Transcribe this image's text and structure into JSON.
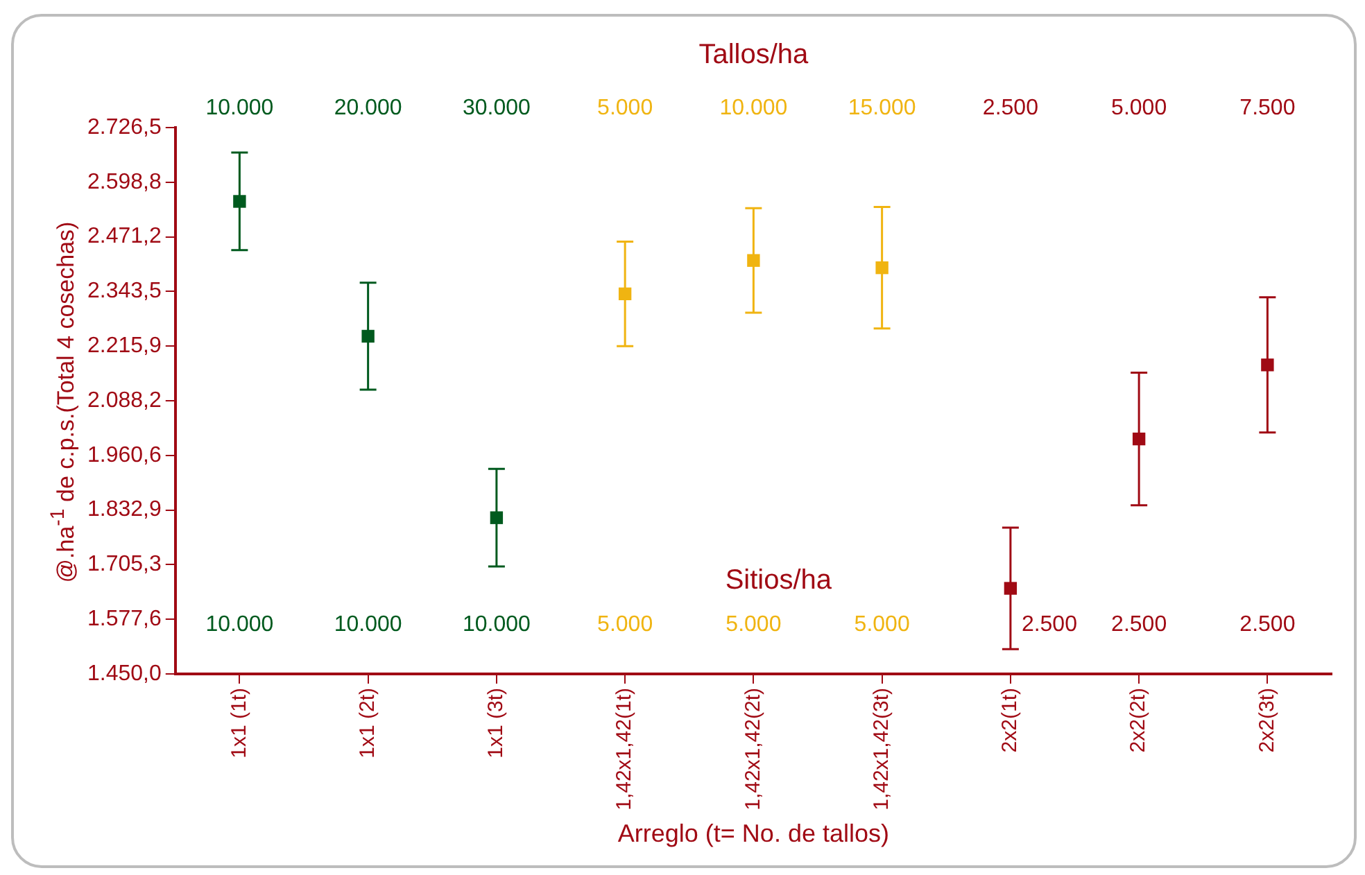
{
  "chart_data": {
    "type": "scatter",
    "xlabel": "Arreglo (t= No. de tallos)",
    "ylabel": "@.ha$^{-1}$ de c.p.s.(Total 4 cosechas)",
    "categories": [
      "1x1 (1t)",
      "1x1 (2t)",
      "1x1 (3t)",
      "1,42x1,42(1t)",
      "1,42x1,42(2t)",
      "1,42x1,42(3t)",
      "2x2(1t)",
      "2x2(2t)",
      "2x2(3t)"
    ],
    "values": [
      2554,
      2239,
      1815,
      2338,
      2416,
      2399,
      1650,
      1999,
      2172
    ],
    "errors": [
      114,
      125,
      114,
      122,
      122,
      142,
      142,
      155,
      158
    ],
    "colors": [
      "#005a1e",
      "#005a1e",
      "#005a1e",
      "#f0b411",
      "#f0b411",
      "#f0b411",
      "#a00a14",
      "#a00a14",
      "#a00a14"
    ],
    "marker": "square",
    "ylim": [
      1450,
      2726.5
    ],
    "yticks": [
      {
        "value": 1450,
        "label": "1.450,0"
      },
      {
        "value": 1577.6,
        "label": "1.577,6"
      },
      {
        "value": 1705.3,
        "label": "1.705,3"
      },
      {
        "value": 1832.9,
        "label": "1.832,9"
      },
      {
        "value": 1960.6,
        "label": "1.960,6"
      },
      {
        "value": 2088.2,
        "label": "2.088,2"
      },
      {
        "value": 2215.9,
        "label": "2.215,9"
      },
      {
        "value": 2343.5,
        "label": "2.343,5"
      },
      {
        "value": 2471.2,
        "label": "2.471,2"
      },
      {
        "value": 2598.8,
        "label": "2.598,8"
      },
      {
        "value": 2726.5,
        "label": "2.726,5"
      }
    ],
    "grid": false,
    "legend": false,
    "annotations": [
      "Tallos/ha",
      "10.000",
      "20.000",
      "30.000",
      "5.000",
      "10.000",
      "15.000",
      "2.500",
      "5.000",
      "7.500",
      "Sitios/ha",
      "10.000",
      "10.000",
      "10.000",
      "5.000",
      "5.000",
      "5.000",
      "2.500",
      "2.500",
      "2.500"
    ]
  }
}
